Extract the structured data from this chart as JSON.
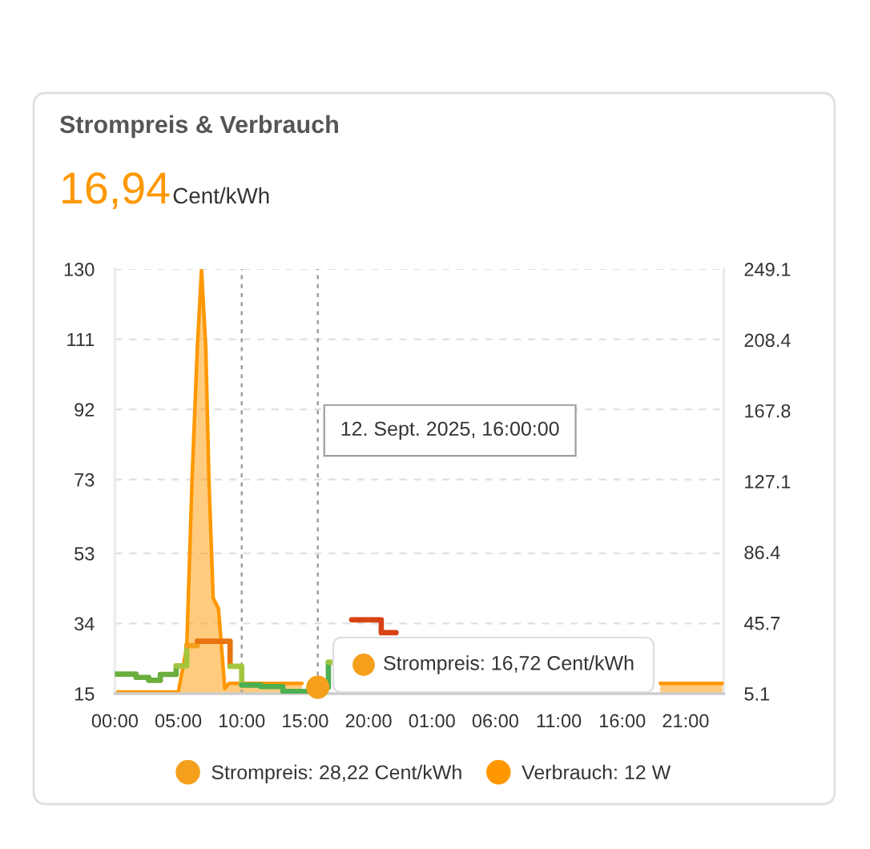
{
  "chart_data": {
    "type": "step",
    "title": "Strompreis & Verbrauch",
    "subtitle": "16,94",
    "annotations": [
      "Cent/kWh",
      "Strompreis: 16,72 Cent/kWh",
      {
        "text": "12. Sept. 2025, 16:00:00",
        "x": "2025-09-12T16:00"
      }
    ],
    "xlim": [
      "2025-09-12T00:00",
      "2025-09-14T00:00"
    ],
    "xticks": [
      {
        "value": "2025-09-12T00:00",
        "label": "00:00"
      },
      {
        "value": "2025-09-12T05:00",
        "label": "05:00"
      },
      {
        "value": "2025-09-12T10:00",
        "label": "10:00"
      },
      {
        "value": "2025-09-12T15:00",
        "label": "15:00"
      },
      {
        "value": "2025-09-12T20:00",
        "label": "20:00"
      },
      {
        "value": "2025-09-13T01:00",
        "label": "01:00"
      },
      {
        "value": "2025-09-13T06:00",
        "label": "06:00"
      },
      {
        "value": "2025-09-13T11:00",
        "label": "11:00"
      },
      {
        "value": "2025-09-13T16:00",
        "label": "16:00"
      },
      {
        "value": "2025-09-13T21:00",
        "label": "21:00"
      }
    ],
    "ylim": [
      15,
      130
    ],
    "yticks": [
      15,
      34,
      53,
      73,
      92,
      111,
      130
    ],
    "y2lim": [
      5.1,
      249.1
    ],
    "y2ticks": [
      5.1,
      45.7,
      86.4,
      127.1,
      167.8,
      208.4,
      249.1
    ],
    "grid": "y",
    "legend": "bottom",
    "ref_lines": [
      {
        "axis": "x",
        "value": "2025-09-12T10:00",
        "line_style": "dotted",
        "color": "#9e9e9e"
      },
      {
        "axis": "x",
        "value": "2025-09-12T16:00",
        "line_style": "dotted",
        "color": "#9e9e9e"
      }
    ],
    "series": [
      {
        "color": "#6aae3e",
        "x": [
          "2025-09-12T00:00",
          "2025-09-12T01:40",
          "2025-09-12T02:40",
          "2025-09-12T03:35",
          "2025-09-12T04:50"
        ],
        "values": [
          20.3,
          19.4,
          18.6,
          20.2,
          22.5
        ]
      },
      {
        "color": "#a3c63e",
        "x": [
          "2025-09-12T04:50",
          "2025-09-12T05:40"
        ],
        "values": [
          22.5,
          28.0
        ]
      },
      {
        "name": "Strompreis: 28,22 Cent/kWh",
        "color": "#f5a01c",
        "x": [
          "2025-09-12T05:40",
          "2025-09-12T06:30"
        ],
        "values": [
          28.0,
          29.2
        ]
      },
      {
        "color": "#e8730f",
        "x": [
          "2025-09-12T06:30",
          "2025-09-12T09:05"
        ],
        "values": [
          29.2,
          22.4
        ]
      },
      {
        "color": "#a3c63e",
        "x": [
          "2025-09-12T09:05",
          "2025-09-12T10:00"
        ],
        "values": [
          22.4,
          17.3
        ]
      },
      {
        "color": "#4caf50",
        "x": [
          "2025-09-12T10:00",
          "2025-09-12T11:30",
          "2025-09-12T13:15",
          "2025-09-12T16:00",
          "2025-09-12T16:50"
        ],
        "values": [
          17.3,
          16.9,
          15.6,
          16.72,
          23.5
        ]
      },
      {
        "color": "#a3c63e",
        "x": [
          "2025-09-12T16:50",
          "2025-09-12T17:15"
        ],
        "values": [
          23.5,
          23.5
        ]
      },
      {
        "color": "#d84315",
        "x": [
          "2025-09-12T18:40",
          "2025-09-12T21:00",
          "2025-09-12T22:10"
        ],
        "values": [
          35.0,
          31.5,
          31.5
        ]
      },
      {
        "type": "scatter",
        "color": "#f5a01c",
        "x": [
          "2025-09-12T16:00"
        ],
        "values": [
          16.72
        ]
      },
      {
        "name": "Verbrauch: 12 W",
        "type": "area",
        "axis": "y2",
        "color": "#ff9800",
        "x": [
          "2025-09-12T00:00",
          "2025-09-12T05:00",
          "2025-09-12T05:40",
          "2025-09-12T06:05",
          "2025-09-12T06:30",
          "2025-09-12T06:50",
          "2025-09-12T07:10",
          "2025-09-12T07:25",
          "2025-09-12T07:45",
          "2025-09-12T08:10",
          "2025-09-12T08:40",
          "2025-09-12T09:00",
          "2025-09-12T14:45",
          "2025-09-12T18:00",
          "2025-09-13T19:00",
          "2025-09-14T00:00"
        ],
        "values": [
          6,
          6,
          32,
          128,
          204,
          249,
          204,
          128,
          60,
          54,
          8,
          11,
          11,
          null,
          11,
          11
        ]
      }
    ]
  }
}
